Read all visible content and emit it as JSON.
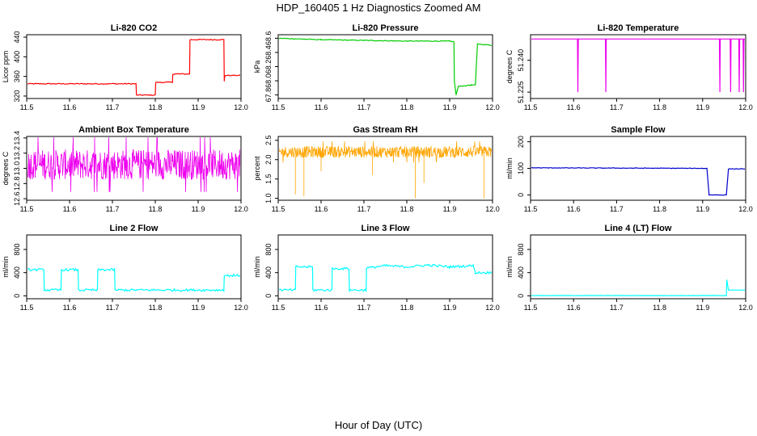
{
  "figure": {
    "title": "HDP_160405  1 Hz Diagnostics Zoomed AM",
    "xlabel": "Hour of Day (UTC)"
  },
  "chart_data": [
    {
      "type": "line",
      "title": "Li-820 CO2",
      "ylabel": "Licor ppm",
      "color": "#ff0000",
      "xlim": [
        11.5,
        12.0
      ],
      "ylim": [
        315,
        445
      ],
      "xticks": [
        11.5,
        11.6,
        11.7,
        11.8,
        11.9,
        12.0
      ],
      "yticks": [
        320,
        360,
        400,
        440
      ],
      "x": [
        11.5,
        11.755,
        11.756,
        11.8,
        11.801,
        11.84,
        11.841,
        11.88,
        11.881,
        11.96,
        11.961,
        11.962,
        12.0
      ],
      "y": [
        345,
        345,
        322,
        322,
        348,
        348,
        365,
        365,
        435,
        435,
        350,
        362,
        362
      ],
      "noise": 1
    },
    {
      "type": "line",
      "title": "Li-820 Pressure",
      "ylabel": "kPa",
      "color": "#00cc00",
      "xlim": [
        11.5,
        12.0
      ],
      "ylim": [
        67.75,
        68.65
      ],
      "xticks": [
        11.5,
        11.6,
        11.7,
        11.8,
        11.9,
        12.0
      ],
      "yticks": [
        67.8,
        68.0,
        68.2,
        68.4,
        68.6
      ],
      "x": [
        11.5,
        11.6,
        11.7,
        11.8,
        11.9,
        11.91,
        11.911,
        11.915,
        11.92,
        11.95,
        11.96,
        11.962,
        11.965,
        12.0
      ],
      "y": [
        68.6,
        68.58,
        68.57,
        68.56,
        68.56,
        68.55,
        68.0,
        67.8,
        67.92,
        67.94,
        67.94,
        68.2,
        68.52,
        68.5
      ],
      "noise": 0.005
    },
    {
      "type": "line",
      "title": "Li-820 Temperature",
      "ylabel": "degrees C",
      "color": "#ee00ee",
      "xlim": [
        11.5,
        12.0
      ],
      "ylim": [
        51.222,
        51.252
      ],
      "xticks": [
        11.5,
        11.6,
        11.7,
        11.8,
        11.9,
        12.0
      ],
      "yticks": [
        51.225,
        51.24
      ],
      "x": [
        11.5,
        11.609,
        11.61,
        11.611,
        11.674,
        11.675,
        11.676,
        11.939,
        11.94,
        11.941,
        11.964,
        11.965,
        11.966,
        11.984,
        11.985,
        11.986,
        11.994,
        11.995,
        11.996,
        12.0
      ],
      "y": [
        51.25,
        51.25,
        51.225,
        51.25,
        51.25,
        51.225,
        51.25,
        51.25,
        51.225,
        51.25,
        51.25,
        51.225,
        51.25,
        51.25,
        51.225,
        51.25,
        51.25,
        51.225,
        51.25,
        51.25
      ],
      "noise": 0
    },
    {
      "type": "line",
      "title": "Ambient Box Temperature",
      "ylabel": "degrees C",
      "color": "#ee00ee",
      "xlim": [
        11.5,
        12.0
      ],
      "ylim": [
        12.58,
        13.42
      ],
      "xticks": [
        11.5,
        11.6,
        11.7,
        11.8,
        11.9,
        12.0
      ],
      "yticks": [
        12.6,
        12.8,
        13.0,
        13.2,
        13.4
      ],
      "x": [
        11.5,
        12.0
      ],
      "y": [
        13.05,
        13.05
      ],
      "noise": 0.2,
      "dense": true
    },
    {
      "type": "line",
      "title": "Gas Stream RH",
      "ylabel": "percent",
      "color": "#ffa500",
      "xlim": [
        11.5,
        12.0
      ],
      "ylim": [
        0.95,
        2.6
      ],
      "xticks": [
        11.5,
        11.6,
        11.7,
        11.8,
        11.9,
        12.0
      ],
      "yticks": [
        1.0,
        1.5,
        2.0,
        2.5
      ],
      "x": [
        11.5,
        12.0
      ],
      "y": [
        2.2,
        2.2
      ],
      "noise": 0.15,
      "dense": true,
      "spikes": [
        [
          11.54,
          1.1
        ],
        [
          11.56,
          1.05
        ],
        [
          11.82,
          1.0
        ],
        [
          11.84,
          1.4
        ],
        [
          11.98,
          1.0
        ],
        [
          11.6,
          1.7
        ],
        [
          11.72,
          1.6
        ]
      ]
    },
    {
      "type": "line",
      "title": "Sample Flow",
      "ylabel": "ml/min",
      "color": "#0000cc",
      "xlim": [
        11.5,
        12.0
      ],
      "ylim": [
        -20,
        220
      ],
      "xticks": [
        11.5,
        11.6,
        11.7,
        11.8,
        11.9,
        12.0
      ],
      "yticks": [
        0,
        100,
        200
      ],
      "x": [
        11.5,
        11.9,
        11.91,
        11.915,
        11.955,
        11.96,
        12.0
      ],
      "y": [
        102,
        100,
        100,
        0,
        0,
        98,
        98
      ],
      "noise": 1
    },
    {
      "type": "line",
      "title": "Line 2 Flow",
      "ylabel": "ml/min",
      "color": "#00ffff",
      "xlim": [
        11.5,
        12.0
      ],
      "ylim": [
        -50,
        1050
      ],
      "xticks": [
        11.5,
        11.6,
        11.7,
        11.8,
        11.9,
        12.0
      ],
      "yticks": [
        0,
        400,
        800
      ],
      "x": [
        11.5,
        11.54,
        11.541,
        11.58,
        11.581,
        11.62,
        11.621,
        11.665,
        11.666,
        11.705,
        11.706,
        11.96,
        11.961,
        12.0
      ],
      "y": [
        450,
        450,
        100,
        100,
        450,
        450,
        100,
        100,
        450,
        450,
        100,
        100,
        350,
        350
      ],
      "noise": 20
    },
    {
      "type": "line",
      "title": "Line 3 Flow",
      "ylabel": "ml/min",
      "color": "#00ffff",
      "xlim": [
        11.5,
        12.0
      ],
      "ylim": [
        -50,
        1050
      ],
      "xticks": [
        11.5,
        11.6,
        11.7,
        11.8,
        11.9,
        12.0
      ],
      "yticks": [
        0,
        400,
        800
      ],
      "x": [
        11.5,
        11.54,
        11.541,
        11.58,
        11.581,
        11.625,
        11.626,
        11.665,
        11.666,
        11.705,
        11.706,
        11.75,
        11.8,
        11.85,
        11.9,
        11.955,
        11.96,
        12.0
      ],
      "y": [
        100,
        100,
        500,
        500,
        100,
        100,
        470,
        470,
        100,
        100,
        480,
        520,
        500,
        530,
        500,
        520,
        400,
        400
      ],
      "noise": 20
    },
    {
      "type": "line",
      "title": "Line 4 (LT) Flow",
      "ylabel": "ml/min",
      "color": "#00ffff",
      "xlim": [
        11.5,
        12.0
      ],
      "ylim": [
        -50,
        1050
      ],
      "xticks": [
        11.5,
        11.6,
        11.7,
        11.8,
        11.9,
        12.0
      ],
      "yticks": [
        0,
        400,
        800
      ],
      "x": [
        11.5,
        11.955,
        11.956,
        11.96,
        12.0
      ],
      "y": [
        5,
        5,
        280,
        100,
        100
      ],
      "noise": 2
    }
  ]
}
